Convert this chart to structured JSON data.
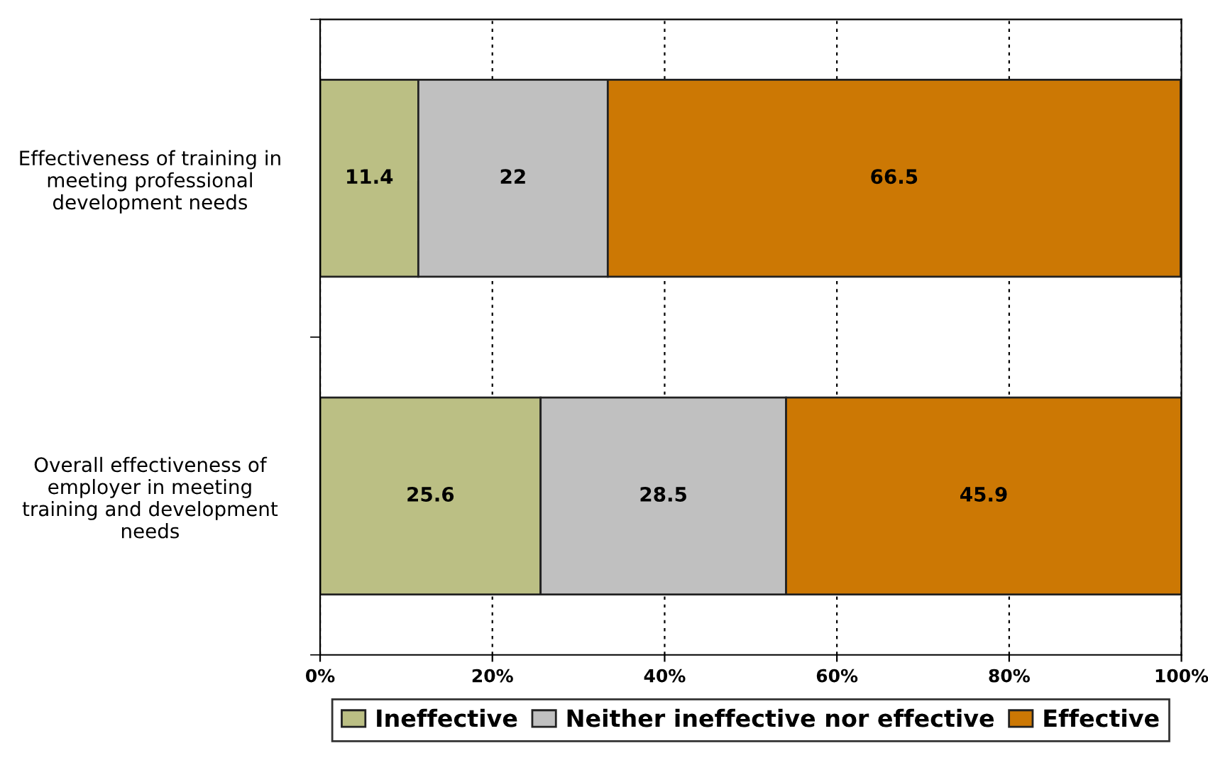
{
  "chart_data": {
    "type": "bar",
    "orientation": "horizontal",
    "stacked": true,
    "categories": [
      "Effectiveness of training in\nmeeting professional\ndevelopment needs",
      "Overall effectiveness of\nemployer in meeting\ntraining and development\nneeds"
    ],
    "series": [
      {
        "name": "Ineffective",
        "color": "#bbbf84",
        "values": [
          11.4,
          25.6
        ]
      },
      {
        "name": "Neither ineffective nor effective",
        "color": "#c0c0c0",
        "values": [
          22,
          28.5
        ]
      },
      {
        "name": "Effective",
        "color": "#cc7804",
        "values": [
          66.5,
          45.9
        ]
      }
    ],
    "xlim": [
      0,
      100
    ],
    "xticks": [
      {
        "value": 0,
        "label": "0%"
      },
      {
        "value": 20,
        "label": "20%"
      },
      {
        "value": 40,
        "label": "40%"
      },
      {
        "value": 60,
        "label": "60%"
      },
      {
        "value": 80,
        "label": "80%"
      },
      {
        "value": 100,
        "label": "100%"
      }
    ],
    "grid": "x",
    "legend": "bottom",
    "data_labels": true
  }
}
